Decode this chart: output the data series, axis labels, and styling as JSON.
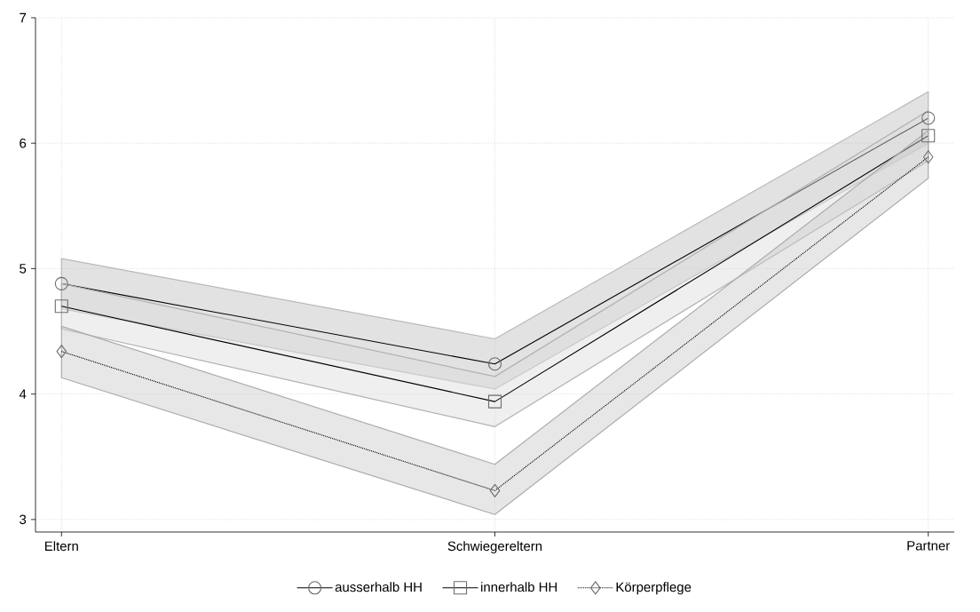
{
  "chart_data": {
    "type": "line",
    "categories": [
      "Eltern",
      "Schwiegereltern",
      "Partner"
    ],
    "ylim": [
      2.9,
      7
    ],
    "yticks": [
      3,
      4,
      5,
      6,
      7
    ],
    "grid": true,
    "legend": "bottom",
    "series": [
      {
        "name": "ausserhalb HH",
        "color": "#000000",
        "marker": "circle",
        "line_style": "solid",
        "values": [
          4.88,
          4.24,
          6.2
        ],
        "lower": [
          4.68,
          4.04,
          6.0
        ],
        "upper": [
          5.08,
          4.44,
          6.41
        ]
      },
      {
        "name": "innerhalb HH",
        "color": "#000000",
        "marker": "square",
        "line_style": "solid",
        "values": [
          4.7,
          3.94,
          6.06
        ],
        "lower": [
          4.52,
          3.74,
          5.86
        ],
        "upper": [
          4.88,
          4.14,
          6.26
        ]
      },
      {
        "name": "Körperpflege",
        "color": "#000000",
        "marker": "diamond",
        "line_style": "dotted",
        "values": [
          4.34,
          3.23,
          5.89
        ],
        "lower": [
          4.13,
          3.04,
          5.72
        ],
        "upper": [
          4.54,
          3.44,
          6.1
        ]
      }
    ]
  }
}
